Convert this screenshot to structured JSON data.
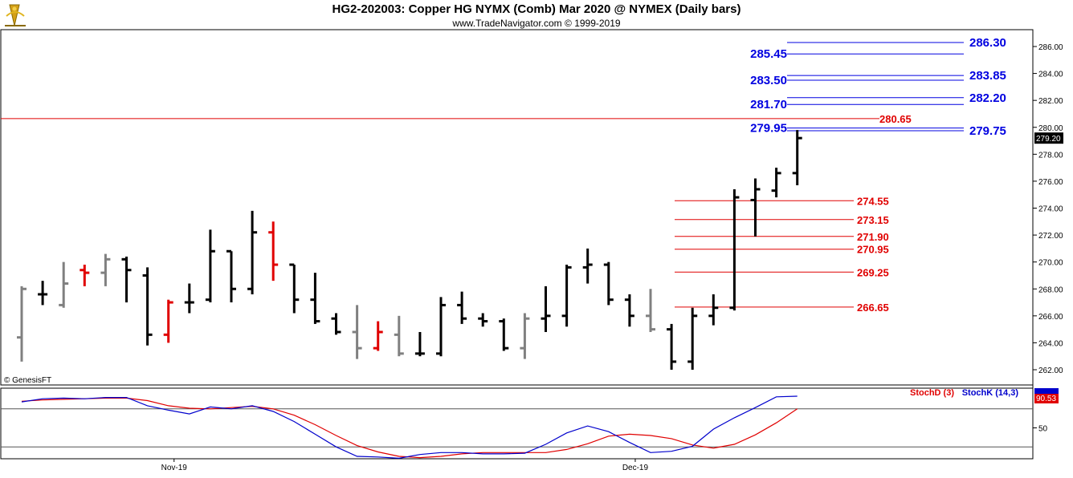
{
  "header": {
    "title": "HG2-202003:  Copper HG NYMX (Comb) Mar 2020 @ NYMEX  (Daily bars)",
    "subtitle": "www.TradeNavigator.com © 1999-2019"
  },
  "credit": "© GenesisFT",
  "colors": {
    "up_bar": "#000000",
    "down_bar": "#e00000",
    "neutral_bar": "#808080",
    "blue_level": "#0000e0",
    "red_level": "#e00000",
    "stoch_d": "#e00000",
    "stoch_k": "#0000cc",
    "last_price_tag": "#000000"
  },
  "chart_data": [
    {
      "type": "ohlc",
      "title": "HG2-202003:  Copper HG NYMX (Comb) Mar 2020 @ NYMEX  (Daily bars)",
      "ylim": [
        261,
        287
      ],
      "y_ticks": [
        "262.00",
        "264.00",
        "266.00",
        "268.00",
        "270.00",
        "272.00",
        "274.00",
        "276.00",
        "278.00",
        "280.00",
        "282.00",
        "284.00",
        "286.00"
      ],
      "x_ticks": [
        {
          "label": "Nov-19",
          "index": 7.5
        },
        {
          "label": "Dec-19",
          "index": 29.5
        }
      ],
      "last_price": "279.20",
      "bars": [
        {
          "o": 264.4,
          "h": 268.2,
          "l": 262.6,
          "c": 268.0,
          "color": "neutral"
        },
        {
          "o": 267.6,
          "h": 268.6,
          "l": 266.8,
          "c": 267.6,
          "color": "up"
        },
        {
          "o": 266.8,
          "h": 270.0,
          "l": 266.6,
          "c": 268.4,
          "color": "neutral"
        },
        {
          "o": 269.4,
          "h": 269.8,
          "l": 268.2,
          "c": 269.2,
          "color": "down"
        },
        {
          "o": 269.2,
          "h": 270.6,
          "l": 268.2,
          "c": 270.2,
          "color": "neutral"
        },
        {
          "o": 270.2,
          "h": 270.4,
          "l": 267.0,
          "c": 269.4,
          "color": "up"
        },
        {
          "o": 269.0,
          "h": 269.6,
          "l": 263.8,
          "c": 264.6,
          "color": "up"
        },
        {
          "o": 264.6,
          "h": 267.2,
          "l": 264.0,
          "c": 267.0,
          "color": "down"
        },
        {
          "o": 267.0,
          "h": 268.4,
          "l": 266.2,
          "c": 267.0,
          "color": "up"
        },
        {
          "o": 267.2,
          "h": 272.4,
          "l": 267.0,
          "c": 270.8,
          "color": "up"
        },
        {
          "o": 270.8,
          "h": 270.8,
          "l": 267.0,
          "c": 268.0,
          "color": "up"
        },
        {
          "o": 268.0,
          "h": 273.8,
          "l": 267.6,
          "c": 272.2,
          "color": "up"
        },
        {
          "o": 272.2,
          "h": 273.0,
          "l": 268.6,
          "c": 269.8,
          "color": "down"
        },
        {
          "o": 269.8,
          "h": 269.8,
          "l": 266.2,
          "c": 267.2,
          "color": "up"
        },
        {
          "o": 267.2,
          "h": 269.2,
          "l": 265.4,
          "c": 265.6,
          "color": "up"
        },
        {
          "o": 265.8,
          "h": 266.2,
          "l": 264.6,
          "c": 264.8,
          "color": "up"
        },
        {
          "o": 264.8,
          "h": 266.8,
          "l": 262.8,
          "c": 263.6,
          "color": "neutral"
        },
        {
          "o": 263.6,
          "h": 265.6,
          "l": 263.4,
          "c": 264.8,
          "color": "down"
        },
        {
          "o": 264.6,
          "h": 266.0,
          "l": 263.0,
          "c": 263.2,
          "color": "neutral"
        },
        {
          "o": 263.2,
          "h": 264.8,
          "l": 263.0,
          "c": 263.2,
          "color": "up"
        },
        {
          "o": 263.2,
          "h": 267.4,
          "l": 263.0,
          "c": 266.8,
          "color": "up"
        },
        {
          "o": 266.8,
          "h": 267.8,
          "l": 265.4,
          "c": 265.8,
          "color": "up"
        },
        {
          "o": 265.8,
          "h": 266.2,
          "l": 265.2,
          "c": 265.6,
          "color": "up"
        },
        {
          "o": 265.6,
          "h": 265.8,
          "l": 263.4,
          "c": 263.6,
          "color": "up"
        },
        {
          "o": 263.6,
          "h": 266.2,
          "l": 262.8,
          "c": 265.8,
          "color": "neutral"
        },
        {
          "o": 265.8,
          "h": 268.2,
          "l": 264.8,
          "c": 266.0,
          "color": "up"
        },
        {
          "o": 266.0,
          "h": 269.8,
          "l": 265.2,
          "c": 269.6,
          "color": "up"
        },
        {
          "o": 269.6,
          "h": 271.0,
          "l": 268.4,
          "c": 269.8,
          "color": "up"
        },
        {
          "o": 269.8,
          "h": 270.0,
          "l": 266.8,
          "c": 267.2,
          "color": "up"
        },
        {
          "o": 267.2,
          "h": 267.6,
          "l": 265.2,
          "c": 266.0,
          "color": "up"
        },
        {
          "o": 266.0,
          "h": 268.0,
          "l": 264.8,
          "c": 265.0,
          "color": "neutral"
        },
        {
          "o": 265.0,
          "h": 265.4,
          "l": 262.0,
          "c": 262.6,
          "color": "up"
        },
        {
          "o": 262.6,
          "h": 266.6,
          "l": 262.0,
          "c": 266.0,
          "color": "up"
        },
        {
          "o": 266.0,
          "h": 267.6,
          "l": 265.3,
          "c": 266.6,
          "color": "up"
        },
        {
          "o": 266.6,
          "h": 275.4,
          "l": 266.4,
          "c": 274.8,
          "color": "up"
        },
        {
          "o": 274.6,
          "h": 276.2,
          "l": 271.9,
          "c": 275.4,
          "color": "up"
        },
        {
          "o": 275.3,
          "h": 277.0,
          "l": 274.8,
          "c": 276.6,
          "color": "up"
        },
        {
          "o": 276.6,
          "h": 279.8,
          "l": 275.7,
          "c": 279.2,
          "color": "up"
        }
      ],
      "levels": [
        {
          "label": "286.30",
          "value": 286.3,
          "color": "blue",
          "side": "right"
        },
        {
          "label": "285.45",
          "value": 285.45,
          "color": "blue",
          "side": "left"
        },
        {
          "label": "283.85",
          "value": 283.85,
          "color": "blue",
          "side": "right"
        },
        {
          "label": "283.50",
          "value": 283.5,
          "color": "blue",
          "side": "left"
        },
        {
          "label": "282.20",
          "value": 282.2,
          "color": "blue",
          "side": "right"
        },
        {
          "label": "281.70",
          "value": 281.7,
          "color": "blue",
          "side": "left"
        },
        {
          "label": "280.65",
          "value": 280.65,
          "color": "red",
          "side": "right",
          "full": true
        },
        {
          "label": "279.95",
          "value": 279.95,
          "color": "blue",
          "side": "left"
        },
        {
          "label": "279.75",
          "value": 279.75,
          "color": "blue",
          "side": "right"
        },
        {
          "label": "274.55",
          "value": 274.55,
          "color": "red",
          "side": "right"
        },
        {
          "label": "273.15",
          "value": 273.15,
          "color": "red",
          "side": "right"
        },
        {
          "label": "271.90",
          "value": 271.9,
          "color": "red",
          "side": "right"
        },
        {
          "label": "270.95",
          "value": 270.95,
          "color": "red",
          "side": "right"
        },
        {
          "label": "269.25",
          "value": 269.25,
          "color": "red",
          "side": "right"
        },
        {
          "label": "266.65",
          "value": 266.65,
          "color": "red",
          "side": "right"
        }
      ]
    },
    {
      "type": "line",
      "ylim": [
        0,
        100
      ],
      "y_ticks": [
        "50"
      ],
      "overbought": 80,
      "oversold": 20,
      "last_value": "90.53",
      "last_value_k": "",
      "series": [
        {
          "name": "StochD (3)",
          "color": "red",
          "values": [
            92,
            94,
            95,
            96,
            97,
            97,
            93,
            85,
            81,
            80,
            82,
            84,
            80,
            70,
            55,
            38,
            22,
            12,
            5,
            3,
            5,
            9,
            11,
            11,
            11,
            11,
            16,
            25,
            37,
            40,
            38,
            33,
            23,
            18,
            24,
            39,
            58,
            80
          ]
        },
        {
          "name": "StochK (14,3)",
          "color": "blue",
          "values": [
            91,
            96,
            97,
            96,
            98,
            98,
            85,
            78,
            72,
            83,
            80,
            85,
            76,
            60,
            40,
            20,
            5,
            4,
            2,
            8,
            11,
            11,
            9,
            9,
            10,
            24,
            42,
            53,
            44,
            27,
            11,
            13,
            21,
            48,
            66,
            82,
            99,
            100
          ]
        }
      ]
    }
  ]
}
